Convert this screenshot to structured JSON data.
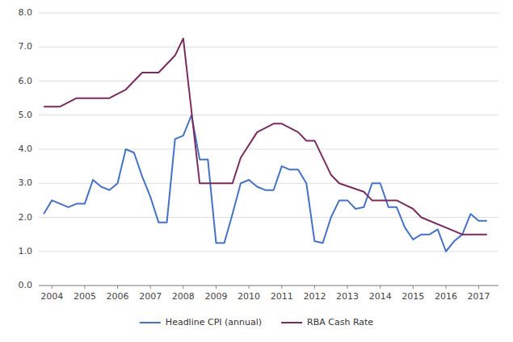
{
  "chart_data": {
    "type": "line",
    "xlim": [
      2003.6,
      2017.6
    ],
    "xticks": [
      2004,
      2005,
      2006,
      2007,
      2008,
      2009,
      2010,
      2011,
      2012,
      2013,
      2014,
      2015,
      2016,
      2017
    ],
    "ylim": [
      0.0,
      8.0
    ],
    "yticks": [
      {
        "value": 0.0,
        "label": "0.0"
      },
      {
        "value": 1.0,
        "label": "1.0"
      },
      {
        "value": 2.0,
        "label": "2.0"
      },
      {
        "value": 3.0,
        "label": "3.0"
      },
      {
        "value": 4.0,
        "label": "4.0"
      },
      {
        "value": 5.0,
        "label": "5.0"
      },
      {
        "value": 6.0,
        "label": "6.0"
      },
      {
        "value": 7.0,
        "label": "7.0"
      },
      {
        "value": 8.0,
        "label": "8.0"
      }
    ],
    "grid": true,
    "legend": "bottom",
    "series": [
      {
        "name": "Headline CPI (annual)",
        "color": "#4472C4",
        "x": [
          2003.75,
          2004.0,
          2004.25,
          2004.5,
          2004.75,
          2005.0,
          2005.25,
          2005.5,
          2005.75,
          2006.0,
          2006.25,
          2006.5,
          2006.75,
          2007.0,
          2007.25,
          2007.5,
          2007.75,
          2008.0,
          2008.25,
          2008.5,
          2008.75,
          2009.0,
          2009.25,
          2009.5,
          2009.75,
          2010.0,
          2010.25,
          2010.5,
          2010.75,
          2011.0,
          2011.25,
          2011.5,
          2011.75,
          2012.0,
          2012.25,
          2012.5,
          2012.75,
          2013.0,
          2013.25,
          2013.5,
          2013.75,
          2014.0,
          2014.25,
          2014.5,
          2014.75,
          2015.0,
          2015.25,
          2015.5,
          2015.75,
          2016.0,
          2016.25,
          2016.5,
          2016.75,
          2017.0,
          2017.25
        ],
        "values": [
          2.1,
          2.5,
          2.4,
          2.3,
          2.4,
          2.4,
          3.1,
          2.9,
          2.8,
          3.0,
          4.0,
          3.9,
          3.2,
          2.6,
          1.85,
          1.85,
          4.3,
          4.4,
          5.0,
          3.7,
          3.7,
          1.25,
          1.25,
          2.1,
          3.0,
          3.1,
          2.9,
          2.8,
          2.8,
          3.5,
          3.4,
          3.4,
          3.0,
          1.3,
          1.25,
          2.0,
          2.5,
          2.5,
          2.25,
          2.3,
          3.0,
          3.0,
          2.3,
          2.3,
          1.7,
          1.35,
          1.5,
          1.5,
          1.65,
          1.0,
          1.3,
          1.5,
          2.1,
          1.9,
          1.9
        ]
      },
      {
        "name": "RBA Cash Rate",
        "color": "#7B2C5E",
        "x": [
          2003.75,
          2004.25,
          2004.75,
          2005.25,
          2005.75,
          2006.25,
          2006.75,
          2007.25,
          2007.75,
          2008.0,
          2008.5,
          2008.75,
          2009.5,
          2009.75,
          2010.25,
          2010.75,
          2011.0,
          2011.5,
          2011.75,
          2012.0,
          2012.5,
          2012.75,
          2013.5,
          2013.75,
          2014.5,
          2015.0,
          2015.25,
          2016.5,
          2016.75,
          2017.25
        ],
        "values": [
          5.25,
          5.25,
          5.5,
          5.5,
          5.5,
          5.75,
          6.25,
          6.25,
          6.75,
          7.25,
          3.0,
          3.0,
          3.0,
          3.75,
          4.5,
          4.75,
          4.75,
          4.5,
          4.25,
          4.25,
          3.25,
          3.0,
          2.75,
          2.5,
          2.5,
          2.25,
          2.0,
          1.5,
          1.5,
          1.5
        ]
      }
    ]
  }
}
